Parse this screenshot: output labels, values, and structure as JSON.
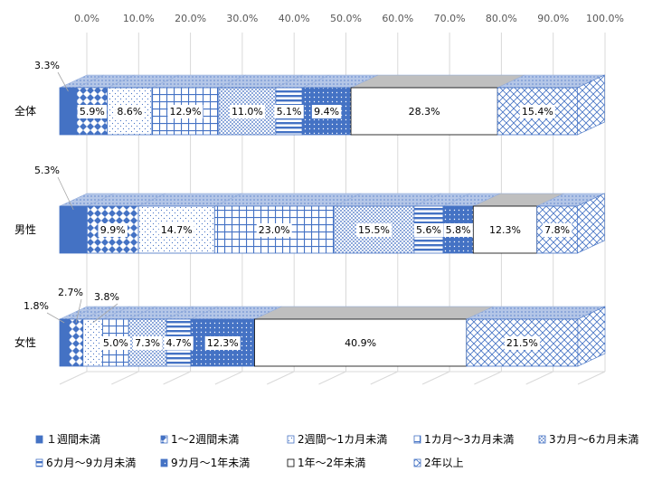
{
  "chart_data": {
    "type": "bar",
    "orientation": "horizontal",
    "stacked": true,
    "percent": true,
    "three_d": true,
    "title": "",
    "xlabel": "",
    "ylabel": "",
    "xlim": [
      0,
      100
    ],
    "x_ticks": [
      "0.0%",
      "10.0%",
      "20.0%",
      "30.0%",
      "40.0%",
      "50.0%",
      "60.0%",
      "70.0%",
      "80.0%",
      "90.0%",
      "100.0%"
    ],
    "categories": [
      "全体",
      "男性",
      "女性"
    ],
    "legend_position": "bottom",
    "series": [
      {
        "name": "１週間未満",
        "values": [
          3.3,
          5.3,
          1.8
        ],
        "labels": [
          "3.3%",
          "5.3%",
          "1.8%"
        ],
        "color": "#4472c4",
        "pattern": "solid"
      },
      {
        "name": "1～2週間未満",
        "values": [
          5.9,
          9.9,
          2.7
        ],
        "labels": [
          "5.9%",
          "9.9%",
          "2.7%"
        ],
        "color": "#4472c4",
        "pattern": "diamond"
      },
      {
        "name": "2週間～1カ月未満",
        "values": [
          8.6,
          14.7,
          3.8
        ],
        "labels": [
          "8.6%",
          "14.7%",
          "3.8%"
        ],
        "color": "#4472c4",
        "pattern": "dots"
      },
      {
        "name": "1カ月～3カ月未満",
        "values": [
          12.9,
          23.0,
          5.0
        ],
        "labels": [
          "12.9%",
          "23.0%",
          "5.0%"
        ],
        "color": "#4472c4",
        "pattern": "grid"
      },
      {
        "name": "3カ月～6カ月未満",
        "values": [
          11.0,
          15.5,
          7.3
        ],
        "labels": [
          "11.0%",
          "15.5%",
          "7.3%"
        ],
        "color": "#4472c4",
        "pattern": "check"
      },
      {
        "name": "6カ月～9カ月未満",
        "values": [
          5.1,
          5.6,
          4.7
        ],
        "labels": [
          "5.1%",
          "5.6%",
          "4.7%"
        ],
        "color": "#4472c4",
        "pattern": "hstripe"
      },
      {
        "name": "9カ月～1年未満",
        "values": [
          9.4,
          5.8,
          12.3
        ],
        "labels": [
          "9.4%",
          "5.8%",
          "12.3%"
        ],
        "color": "#4472c4",
        "pattern": "darkdots"
      },
      {
        "name": "1年～2年未満",
        "values": [
          28.3,
          12.3,
          40.9
        ],
        "labels": [
          "28.3%",
          "12.3%",
          "40.9%"
        ],
        "color": "#ffffff",
        "pattern": "white"
      },
      {
        "name": "2年以上",
        "values": [
          15.4,
          7.8,
          21.5
        ],
        "labels": [
          "15.4%",
          "7.8%",
          "21.5%"
        ],
        "color": "#4472c4",
        "pattern": "zigzag"
      }
    ],
    "grid": true
  }
}
